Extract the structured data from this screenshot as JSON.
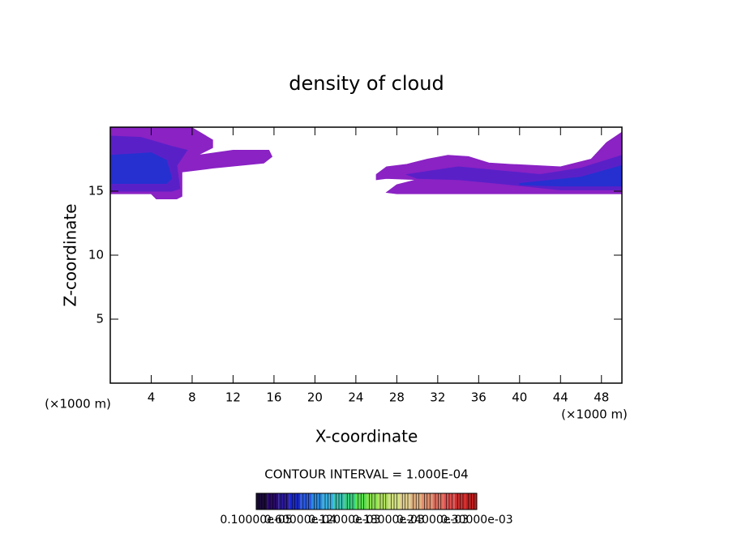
{
  "chart_data": {
    "type": "contour",
    "title": "density of cloud",
    "xlabel": "X-coordinate",
    "ylabel": "Z-coordinate",
    "x_unit_left": "(×1000 m)",
    "x_unit_right": "(×1000 m)",
    "note": "CONTOUR INTERVAL = 1.000E-04",
    "xlim": [
      0,
      50
    ],
    "ylim": [
      0,
      20
    ],
    "xticks": [
      4,
      8,
      12,
      16,
      20,
      24,
      28,
      32,
      36,
      40,
      44,
      48
    ],
    "yticks": [
      5,
      10,
      15
    ],
    "regions": [
      {
        "color": "#8a22c4",
        "x": [
          0,
          7.9,
          10,
          10,
          8.5,
          12,
          15.5,
          15.8,
          15,
          10,
          7,
          7,
          6.5,
          4.5,
          4,
          0
        ],
        "y": [
          20,
          20,
          19,
          18.4,
          17.8,
          18.2,
          18.2,
          17.7,
          17.2,
          16.8,
          16.5,
          14.6,
          14.4,
          14.4,
          14.8,
          14.8
        ]
      },
      {
        "color": "#5a20c8",
        "x": [
          0,
          3,
          6,
          7.5,
          6.5,
          6.8,
          6,
          0
        ],
        "y": [
          19.3,
          19.2,
          18.5,
          18.2,
          17,
          15.2,
          15,
          15
        ]
      },
      {
        "color": "#2630d0",
        "x": [
          0,
          4,
          5.5,
          6,
          5.5,
          0
        ],
        "y": [
          17.8,
          18,
          17.4,
          16,
          15.6,
          15.6
        ]
      },
      {
        "color": "#8a22c4",
        "x": [
          26,
          27,
          29,
          31,
          33,
          35,
          37,
          39,
          44,
          47,
          48.5,
          50,
          50,
          44,
          30,
          28,
          27,
          28,
          30,
          27,
          26
        ],
        "y": [
          16.3,
          16.9,
          17.1,
          17.5,
          17.8,
          17.7,
          17.2,
          17.1,
          16.9,
          17.5,
          18.8,
          19.6,
          14.8,
          14.8,
          14.8,
          14.8,
          14.9,
          15.5,
          15.9,
          16,
          15.9
        ]
      },
      {
        "color": "#5a20c8",
        "x": [
          29,
          34,
          38,
          42,
          46,
          50,
          50,
          44,
          38,
          34,
          30
        ],
        "y": [
          16.3,
          16.9,
          16.6,
          16.3,
          16.8,
          17.8,
          15.1,
          15.1,
          15.6,
          15.9,
          16
        ]
      },
      {
        "color": "#2630d0",
        "x": [
          40,
          46,
          50,
          50,
          44,
          40
        ],
        "y": [
          15.6,
          16.1,
          17,
          15.4,
          15.4,
          15.5
        ]
      }
    ],
    "colorbar_colors": [
      "#1a0a3a",
      "#2a0a6a",
      "#2a1a9a",
      "#1a2acc",
      "#2a5ae0",
      "#2a8ae0",
      "#3ab0e0",
      "#3ac0b0",
      "#3ad080",
      "#5ae050",
      "#8ae050",
      "#b0e060",
      "#d0e080",
      "#e0d090",
      "#e0b080",
      "#e09070",
      "#e07060",
      "#e05050",
      "#d03030",
      "#c02020"
    ],
    "colorbar_labels": [
      "0.10000e-05",
      "0.60000e-04",
      "0.12000e-03",
      "0.18000e-03",
      "0.24000e-03",
      "0.30000e-03"
    ]
  }
}
